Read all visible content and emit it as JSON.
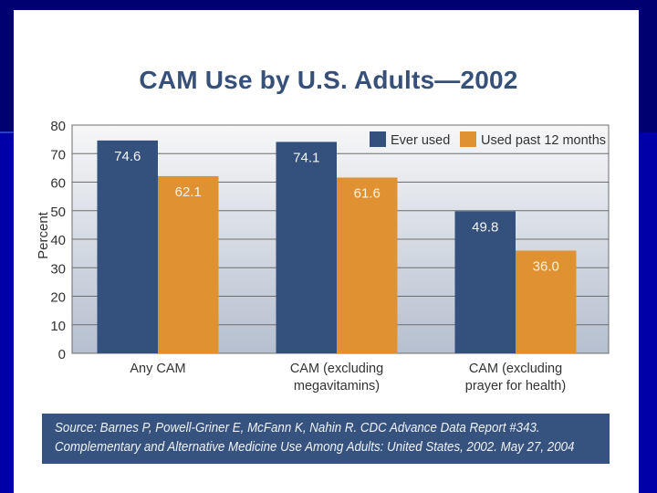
{
  "slide": {
    "title": "CAM Use by U.S. Adults—2002",
    "source_lines": [
      "Source: Barnes P, Powell-Griner E, McFann K, Nahin R. CDC Advance Data Report #343.",
      "Complementary and Alternative Medicine Use Among Adults: United States, 2002. May 27, 2004"
    ]
  },
  "colors": {
    "ever_used": "#34507c",
    "past_12_months": "#e09233",
    "title": "#37507a",
    "source_box": "#36527e"
  },
  "chart_data": {
    "type": "bar",
    "title": "CAM Use by U.S. Adults—2002",
    "xlabel": "",
    "ylabel": "Percent",
    "ylim": [
      0,
      80
    ],
    "yticks": [
      0,
      10,
      20,
      30,
      40,
      50,
      60,
      70,
      80
    ],
    "grid": true,
    "legend_position": "top-right",
    "categories": [
      [
        "Any CAM"
      ],
      [
        "CAM (excluding",
        "megavitamins)"
      ],
      [
        "CAM (excluding",
        "prayer for health)"
      ]
    ],
    "series": [
      {
        "name": "Ever used",
        "color": "#34507c",
        "values": [
          74.6,
          74.1,
          49.8
        ],
        "labels": [
          "74.6",
          "74.1",
          "49.8"
        ]
      },
      {
        "name": "Used past 12 months",
        "color": "#e09233",
        "values": [
          62.1,
          61.6,
          36.0
        ],
        "labels": [
          "62.1",
          "61.6",
          "36.0"
        ]
      }
    ]
  }
}
